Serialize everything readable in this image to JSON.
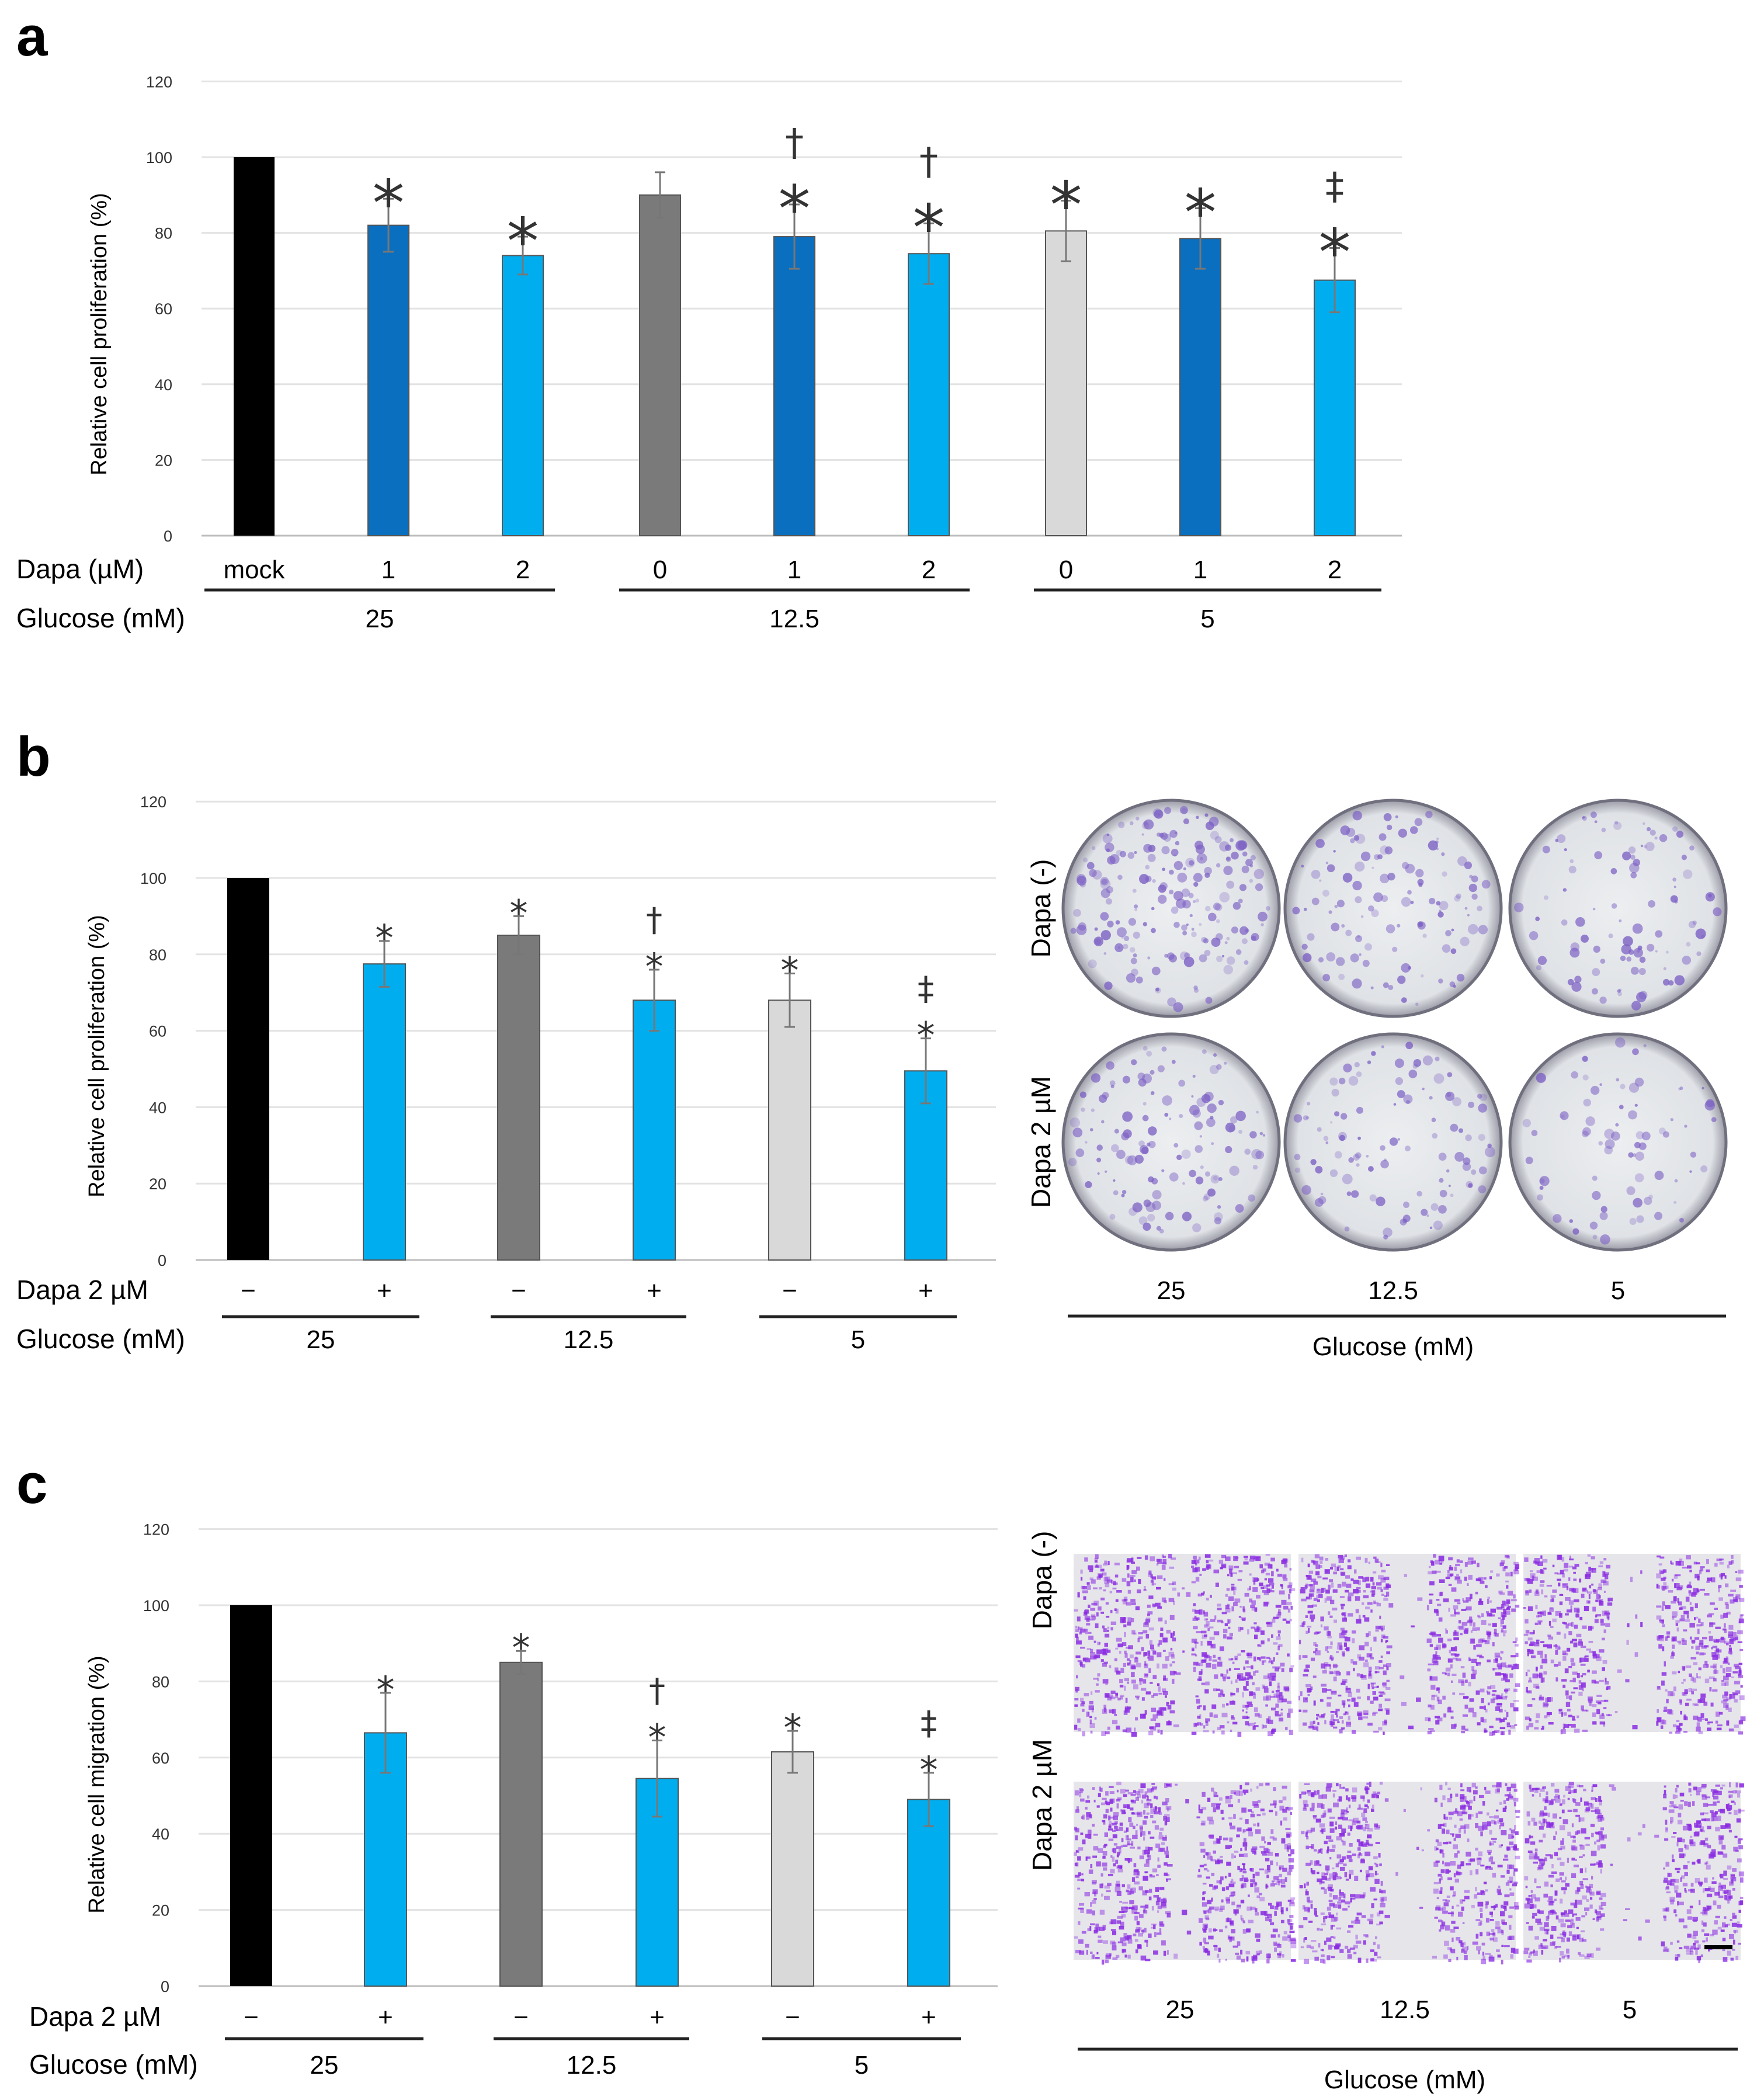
{
  "chart_data": [
    {
      "panel": "a",
      "type": "bar",
      "ylabel": "Relative cell proliferation (%)",
      "ylim": [
        0,
        120
      ],
      "yticks": [
        0,
        20,
        40,
        60,
        80,
        100,
        120
      ],
      "row_labels": {
        "dapa": "Dapa (µM)",
        "glucose": "Glucose (mM)"
      },
      "dapa_labels": [
        "mock",
        "1",
        "2",
        "0",
        "1",
        "2",
        "0",
        "1",
        "2"
      ],
      "glucose_groups": [
        {
          "label": "25",
          "bars": [
            0,
            2
          ]
        },
        {
          "label": "12.5",
          "bars": [
            3,
            5
          ]
        },
        {
          "label": "5",
          "bars": [
            6,
            8
          ]
        }
      ],
      "values": [
        100,
        82,
        74,
        90,
        79,
        74.5,
        80.5,
        78.5,
        67.5
      ],
      "errors": [
        0,
        7,
        5,
        6,
        8.5,
        8,
        8,
        8,
        8.5
      ],
      "colors": [
        "#000000",
        "#0a6fbf",
        "#00aeef",
        "#7a7a7a",
        "#0a6fbf",
        "#00aeef",
        "#d9d9d9",
        "#0a6fbf",
        "#00aeef"
      ],
      "annotations": [
        "",
        "*",
        "*",
        "",
        "†\n*",
        "†\n*",
        "*",
        "*",
        "‡\n*"
      ]
    },
    {
      "panel": "b",
      "type": "bar",
      "ylabel": "Relative cell proliferation (%)",
      "ylim": [
        0,
        120
      ],
      "yticks": [
        0,
        20,
        40,
        60,
        80,
        100,
        120
      ],
      "row_labels": {
        "dapa": "Dapa 2 µM",
        "glucose": "Glucose (mM)"
      },
      "dapa_labels": [
        "−",
        "+",
        "−",
        "+",
        "−",
        "+"
      ],
      "glucose_groups": [
        {
          "label": "25",
          "bars": [
            0,
            1
          ]
        },
        {
          "label": "12.5",
          "bars": [
            2,
            3
          ]
        },
        {
          "label": "5",
          "bars": [
            4,
            5
          ]
        }
      ],
      "values": [
        100,
        77.5,
        85,
        68,
        68,
        49.5
      ],
      "errors": [
        0,
        6,
        5,
        8,
        7,
        8.5
      ],
      "colors": [
        "#000000",
        "#00aeef",
        "#7a7a7a",
        "#00aeef",
        "#d9d9d9",
        "#00aeef"
      ],
      "annotations": [
        "",
        "*",
        "*",
        "†\n*",
        "*",
        "‡\n*"
      ]
    },
    {
      "panel": "c",
      "type": "bar",
      "ylabel": "Relative cell migration (%)",
      "ylim": [
        0,
        120
      ],
      "yticks": [
        0,
        20,
        40,
        60,
        80,
        100,
        120
      ],
      "row_labels": {
        "dapa": "Dapa 2 µM",
        "glucose": "Glucose (mM)"
      },
      "dapa_labels": [
        "−",
        "+",
        "−",
        "+",
        "−",
        "+"
      ],
      "glucose_groups": [
        {
          "label": "25",
          "bars": [
            0,
            1
          ]
        },
        {
          "label": "12.5",
          "bars": [
            2,
            3
          ]
        },
        {
          "label": "5",
          "bars": [
            4,
            5
          ]
        }
      ],
      "values": [
        100,
        66.5,
        85,
        54.5,
        61.5,
        49
      ],
      "errors": [
        0,
        10.5,
        3,
        10,
        5.5,
        7
      ],
      "colors": [
        "#000000",
        "#00aeef",
        "#7a7a7a",
        "#00aeef",
        "#d9d9d9",
        "#00aeef"
      ],
      "annotations": [
        "",
        "*",
        "*",
        "†\n*",
        "*",
        "‡\n*"
      ]
    }
  ],
  "panel_labels": [
    "a",
    "b",
    "c"
  ],
  "images": {
    "b": {
      "row_labels": [
        "Dapa (-)",
        "Dapa 2 µM"
      ],
      "col_labels": [
        "25",
        "12.5",
        "5"
      ],
      "axis_label": "Glucose (mM)",
      "density": [
        [
          0.9,
          0.55,
          0.45
        ],
        [
          0.6,
          0.5,
          0.35
        ]
      ],
      "stain_color": "#7b5fc4"
    },
    "c": {
      "row_labels": [
        "Dapa (-)",
        "Dapa 2 µM"
      ],
      "col_labels": [
        "25",
        "12.5",
        "5"
      ],
      "axis_label": "Glucose (mM)",
      "gap_fraction": [
        [
          0.08,
          0.18,
          0.22
        ],
        [
          0.14,
          0.24,
          0.28
        ]
      ],
      "stain_color": "#8a2be2"
    }
  }
}
